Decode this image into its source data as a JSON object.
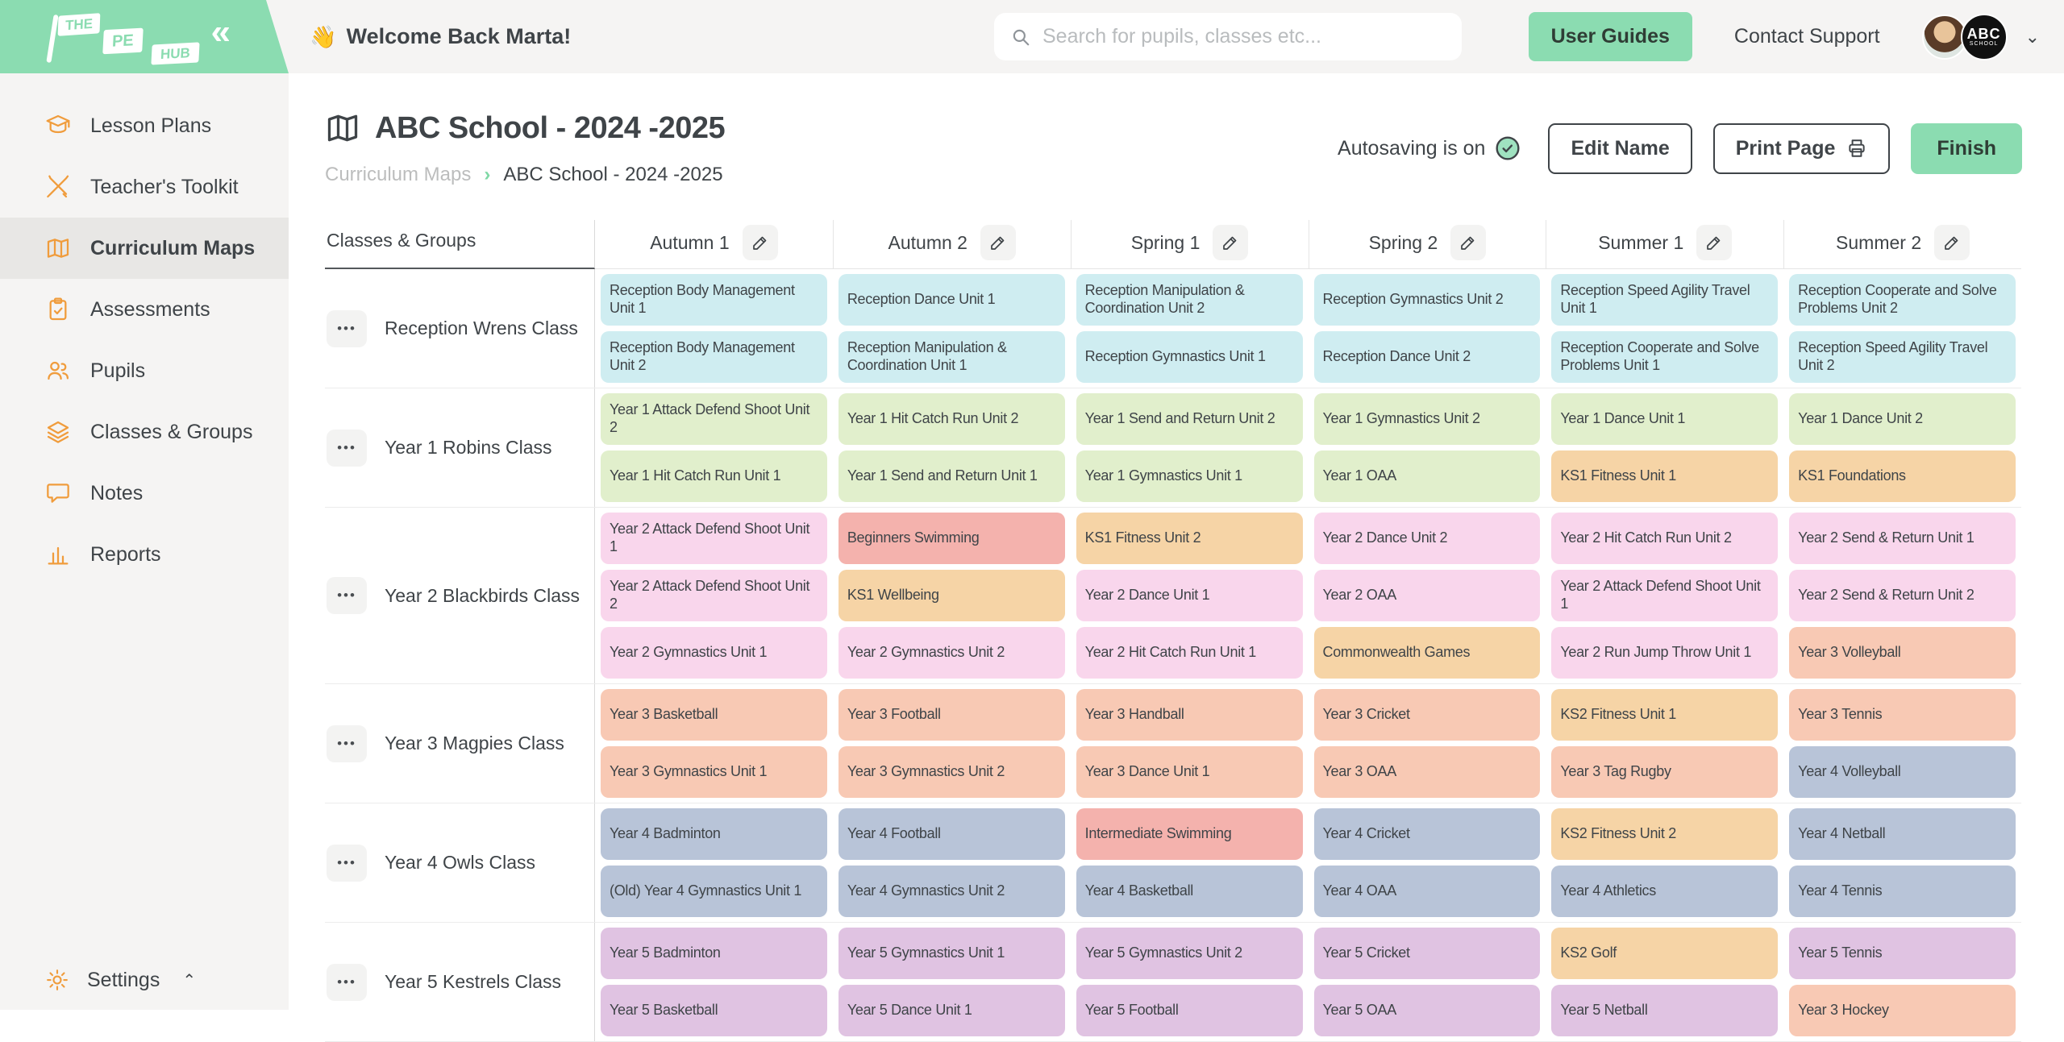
{
  "sidebar": {
    "logo": {
      "the": "THE",
      "pe": "PE",
      "hub": "HUB"
    },
    "collapse_icon": "«",
    "items": [
      {
        "label": "Lesson Plans",
        "icon": "graduation-cap",
        "active": false
      },
      {
        "label": "Teacher's Toolkit",
        "icon": "crossed-pencils",
        "active": false
      },
      {
        "label": "Curriculum Maps",
        "icon": "map",
        "active": true
      },
      {
        "label": "Assessments",
        "icon": "clipboard-check",
        "active": false
      },
      {
        "label": "Pupils",
        "icon": "people",
        "active": false
      },
      {
        "label": "Classes & Groups",
        "icon": "layers",
        "active": false
      },
      {
        "label": "Notes",
        "icon": "speech-bubble",
        "active": false
      },
      {
        "label": "Reports",
        "icon": "bar-chart",
        "active": false
      }
    ],
    "settings_label": "Settings"
  },
  "header": {
    "wave_emoji": "👋",
    "welcome": "Welcome Back Marta!",
    "search_placeholder": "Search for pupils, classes etc...",
    "user_guides": "User Guides",
    "contact_support": "Contact Support",
    "school_badge_line1": "ABC",
    "school_badge_line2": "SCHOOL"
  },
  "page": {
    "title": "ABC School - 2024 -2025",
    "breadcrumb": [
      "Curriculum Maps",
      "ABC School - 2024 -2025"
    ],
    "autosave_status": "Autosaving is on",
    "edit_name_label": "Edit Name",
    "print_page_label": "Print Page",
    "finish_label": "Finish"
  },
  "table": {
    "corner_label": "Classes & Groups",
    "terms": [
      "Autumn 1",
      "Autumn 2",
      "Spring 1",
      "Spring 2",
      "Summer 1",
      "Summer 2"
    ],
    "palette": {
      "reception": "#cfedf1",
      "year1": "#e1efcc",
      "year2": "#f9d6ec",
      "year3": "#f8c9b4",
      "year4": "#b8c4d8",
      "year5": "#e0c3e2",
      "orange": "#f6d4a6",
      "red": "#f4b2ad"
    },
    "rows": [
      {
        "label": "Reception Wrens Class",
        "columns": [
          [
            {
              "t": "Reception Body Management Unit 1",
              "c": "reception"
            },
            {
              "t": "Reception Body Management Unit 2",
              "c": "reception"
            }
          ],
          [
            {
              "t": "Reception Dance Unit 1",
              "c": "reception"
            },
            {
              "t": "Reception Manipulation & Coordination Unit 1",
              "c": "reception"
            }
          ],
          [
            {
              "t": "Reception Manipulation & Coordination Unit 2",
              "c": "reception"
            },
            {
              "t": "Reception Gymnastics Unit 1",
              "c": "reception"
            }
          ],
          [
            {
              "t": "Reception Gymnastics Unit 2",
              "c": "reception"
            },
            {
              "t": "Reception Dance Unit 2",
              "c": "reception"
            }
          ],
          [
            {
              "t": "Reception Speed Agility Travel Unit 1",
              "c": "reception"
            },
            {
              "t": "Reception Cooperate and Solve Problems Unit 1",
              "c": "reception"
            }
          ],
          [
            {
              "t": "Reception Cooperate and Solve Problems Unit 2",
              "c": "reception"
            },
            {
              "t": "Reception Speed Agility Travel Unit 2",
              "c": "reception"
            }
          ]
        ]
      },
      {
        "label": "Year 1 Robins Class",
        "columns": [
          [
            {
              "t": "Year 1 Attack Defend Shoot Unit 2",
              "c": "year1"
            },
            {
              "t": "Year 1 Hit Catch Run Unit 1",
              "c": "year1"
            }
          ],
          [
            {
              "t": "Year 1 Hit Catch Run Unit 2",
              "c": "year1"
            },
            {
              "t": "Year 1 Send and Return Unit 1",
              "c": "year1"
            }
          ],
          [
            {
              "t": "Year 1 Send and Return Unit 2",
              "c": "year1"
            },
            {
              "t": "Year 1 Gymnastics Unit 1",
              "c": "year1"
            }
          ],
          [
            {
              "t": "Year 1 Gymnastics Unit 2",
              "c": "year1"
            },
            {
              "t": "Year 1 OAA",
              "c": "year1"
            }
          ],
          [
            {
              "t": "Year 1 Dance Unit 1",
              "c": "year1"
            },
            {
              "t": "KS1 Fitness Unit 1",
              "c": "orange"
            }
          ],
          [
            {
              "t": "Year 1 Dance Unit 2",
              "c": "year1"
            },
            {
              "t": "KS1 Foundations",
              "c": "orange"
            }
          ]
        ]
      },
      {
        "label": "Year 2 Blackbirds Class",
        "columns": [
          [
            {
              "t": "Year 2 Attack Defend Shoot Unit 1",
              "c": "year2"
            },
            {
              "t": "Year 2 Attack Defend Shoot Unit 2",
              "c": "year2"
            },
            {
              "t": "Year 2 Gymnastics Unit 1",
              "c": "year2"
            }
          ],
          [
            {
              "t": "Beginners Swimming",
              "c": "red"
            },
            {
              "t": "KS1 Wellbeing",
              "c": "orange"
            },
            {
              "t": "Year 2 Gymnastics Unit 2",
              "c": "year2"
            }
          ],
          [
            {
              "t": "KS1 Fitness Unit 2",
              "c": "orange"
            },
            {
              "t": "Year 2 Dance Unit 1",
              "c": "year2"
            },
            {
              "t": "Year 2 Hit Catch Run Unit 1",
              "c": "year2"
            }
          ],
          [
            {
              "t": "Year 2 Dance Unit 2",
              "c": "year2"
            },
            {
              "t": "Year 2 OAA",
              "c": "year2"
            },
            {
              "t": "Commonwealth Games",
              "c": "orange"
            }
          ],
          [
            {
              "t": "Year 2 Hit Catch Run Unit 2",
              "c": "year2"
            },
            {
              "t": "Year 2 Attack Defend Shoot Unit 1",
              "c": "year2"
            },
            {
              "t": "Year 2 Run Jump Throw Unit 1",
              "c": "year2"
            }
          ],
          [
            {
              "t": "Year 2 Send & Return Unit 1",
              "c": "year2"
            },
            {
              "t": "Year 2 Send & Return Unit 2",
              "c": "year2"
            },
            {
              "t": "Year 3 Volleyball",
              "c": "year3"
            }
          ]
        ]
      },
      {
        "label": "Year 3 Magpies Class",
        "columns": [
          [
            {
              "t": "Year 3 Basketball",
              "c": "year3"
            },
            {
              "t": "Year 3 Gymnastics Unit 1",
              "c": "year3"
            }
          ],
          [
            {
              "t": "Year 3 Football",
              "c": "year3"
            },
            {
              "t": "Year 3 Gymnastics Unit 2",
              "c": "year3"
            }
          ],
          [
            {
              "t": "Year 3 Handball",
              "c": "year3"
            },
            {
              "t": "Year 3 Dance Unit 1",
              "c": "year3"
            }
          ],
          [
            {
              "t": "Year 3 Cricket",
              "c": "year3"
            },
            {
              "t": "Year 3 OAA",
              "c": "year3"
            }
          ],
          [
            {
              "t": "KS2 Fitness Unit 1",
              "c": "orange"
            },
            {
              "t": "Year 3 Tag Rugby",
              "c": "year3"
            }
          ],
          [
            {
              "t": "Year 3 Tennis",
              "c": "year3"
            },
            {
              "t": "Year 4 Volleyball",
              "c": "year4"
            }
          ]
        ]
      },
      {
        "label": "Year 4 Owls Class",
        "columns": [
          [
            {
              "t": "Year 4 Badminton",
              "c": "year4"
            },
            {
              "t": "(Old) Year 4 Gymnastics Unit 1",
              "c": "year4"
            }
          ],
          [
            {
              "t": "Year 4 Football",
              "c": "year4"
            },
            {
              "t": "Year 4 Gymnastics Unit 2",
              "c": "year4"
            }
          ],
          [
            {
              "t": "Intermediate Swimming",
              "c": "red"
            },
            {
              "t": "Year 4 Basketball",
              "c": "year4"
            }
          ],
          [
            {
              "t": "Year 4 Cricket",
              "c": "year4"
            },
            {
              "t": "Year 4 OAA",
              "c": "year4"
            }
          ],
          [
            {
              "t": "KS2 Fitness Unit 2",
              "c": "orange"
            },
            {
              "t": "Year 4 Athletics",
              "c": "year4"
            }
          ],
          [
            {
              "t": "Year 4 Netball",
              "c": "year4"
            },
            {
              "t": "Year 4 Tennis",
              "c": "year4"
            }
          ]
        ]
      },
      {
        "label": "Year 5 Kestrels Class",
        "columns": [
          [
            {
              "t": "Year 5 Badminton",
              "c": "year5"
            },
            {
              "t": "Year 5 Basketball",
              "c": "year5"
            }
          ],
          [
            {
              "t": "Year 5 Gymnastics Unit 1",
              "c": "year5"
            },
            {
              "t": "Year 5 Dance Unit 1",
              "c": "year5"
            }
          ],
          [
            {
              "t": "Year 5 Gymnastics Unit 2",
              "c": "year5"
            },
            {
              "t": "Year 5 Football",
              "c": "year5"
            }
          ],
          [
            {
              "t": "Year 5 Cricket",
              "c": "year5"
            },
            {
              "t": "Year 5 OAA",
              "c": "year5"
            }
          ],
          [
            {
              "t": "KS2 Golf",
              "c": "orange"
            },
            {
              "t": "Year 5 Netball",
              "c": "year5"
            }
          ],
          [
            {
              "t": "Year 5 Tennis",
              "c": "year5"
            },
            {
              "t": "Year 3 Hockey",
              "c": "year3"
            }
          ]
        ]
      }
    ]
  }
}
